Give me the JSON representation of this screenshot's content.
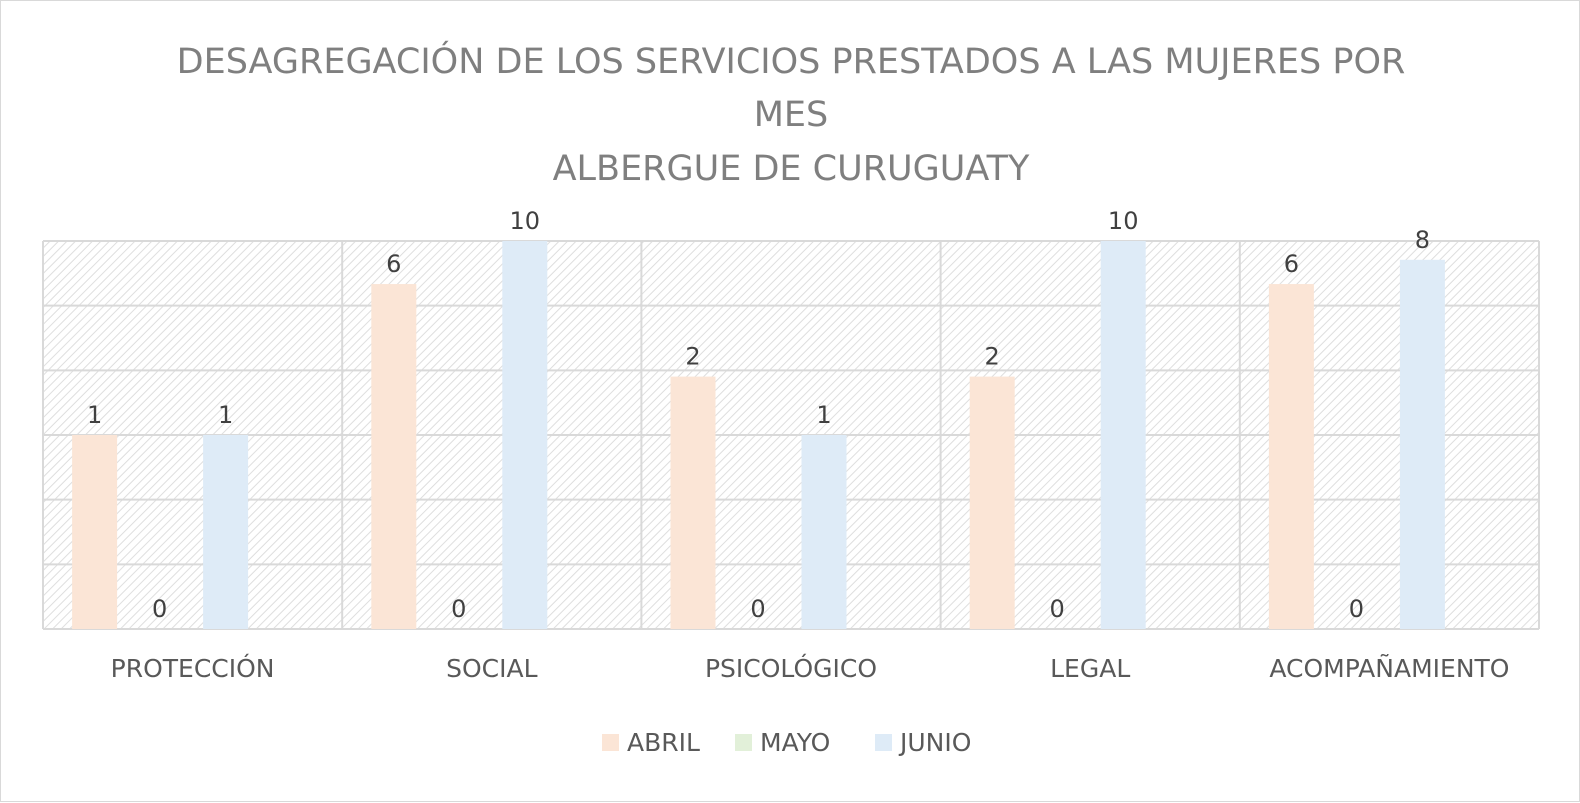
{
  "chart_data": {
    "type": "bar",
    "title_lines": [
      "DESAGREGACIÓN DE LOS SERVICIOS PRESTADOS A LAS MUJERES POR",
      "MES",
      "ALBERGUE DE CURUGUATY"
    ],
    "categories": [
      "PROTECCIÓN",
      "SOCIAL",
      "PSICOLÓGICO",
      "LEGAL",
      "ACOMPAÑAMIENTO"
    ],
    "series": [
      {
        "name": "ABRIL",
        "values": [
          1,
          6,
          2,
          2,
          6
        ],
        "color": "#fbe5d6"
      },
      {
        "name": "MAYO",
        "values": [
          0,
          0,
          0,
          0,
          0
        ],
        "color": "#e2f0d9"
      },
      {
        "name": "JUNIO",
        "values": [
          1,
          10,
          1,
          10,
          8
        ],
        "color": "#deebf7"
      }
    ],
    "value_scale": "log",
    "ylim": [
      0.1,
      10
    ],
    "grid": true,
    "legend": "bottom",
    "xlabel": "",
    "ylabel": ""
  }
}
